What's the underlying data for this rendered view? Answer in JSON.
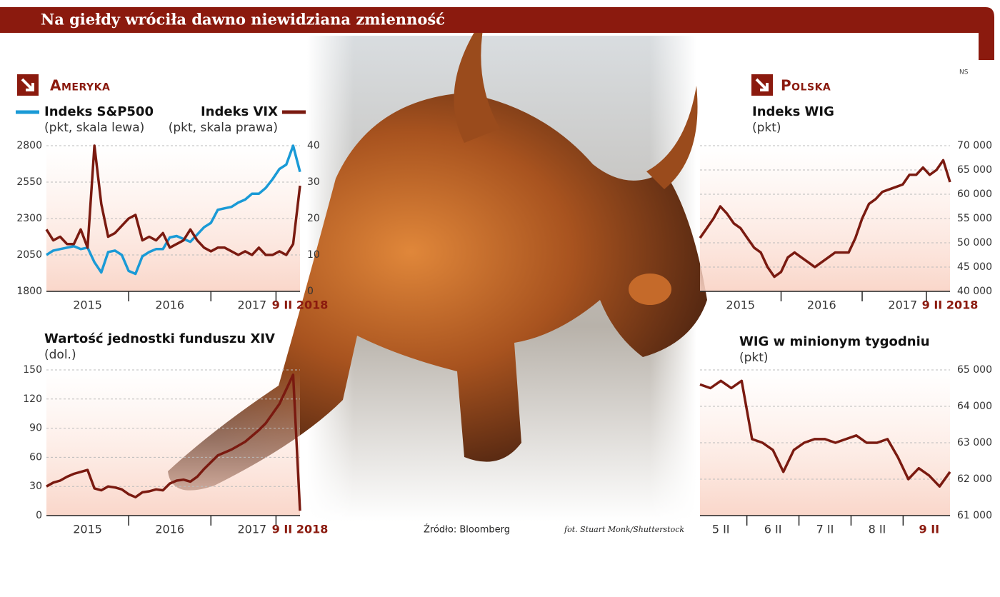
{
  "header": {
    "title": "Na giełdy wróciła dawno niewidziana zmienność",
    "agency": "NS"
  },
  "sections": {
    "america": "Ameryka",
    "poland": "Polska"
  },
  "source": "Źródło: Bloomberg",
  "credit": "fot. Stuart Monk/Shutterstock",
  "chart_data": [
    {
      "type": "line",
      "grid": true,
      "categories": [
        null,
        null,
        null,
        null,
        null,
        null,
        "2015",
        null,
        null,
        null,
        null,
        null,
        null,
        null,
        null,
        null,
        null,
        null,
        "2016",
        null,
        null,
        null,
        null,
        null,
        null,
        null,
        null,
        null,
        null,
        null,
        "2017",
        null,
        null,
        null,
        null,
        null,
        null,
        "9 II 2018"
      ],
      "series": [
        {
          "name": "Indeks S&P500",
          "subtitle": "(pkt, skala lewa)",
          "color": "#1a9ad6",
          "values": [
            2050,
            2080,
            2090,
            2100,
            2110,
            2090,
            2100,
            2000,
            1930,
            2070,
            2080,
            2050,
            1940,
            1920,
            2040,
            2070,
            2090,
            2090,
            2170,
            2180,
            2160,
            2140,
            2190,
            2240,
            2270,
            2360,
            2370,
            2380,
            2410,
            2430,
            2470,
            2470,
            2510,
            2570,
            2640,
            2670,
            2800,
            2620
          ]
        },
        {
          "name": "Indeks VIX",
          "subtitle": "(pkt, skala prawa)",
          "color": "#7a1a10",
          "axis": "y2",
          "values": [
            17,
            14,
            15,
            13,
            13,
            17,
            12,
            40,
            24,
            15,
            16,
            18,
            20,
            21,
            14,
            15,
            14,
            16,
            12,
            13,
            14,
            17,
            14,
            12,
            11,
            12,
            12,
            11,
            10,
            11,
            10,
            12,
            10,
            10,
            11,
            10,
            13,
            29
          ]
        }
      ],
      "ylim": [
        1800,
        2800
      ],
      "yticks": [
        1800,
        2050,
        2300,
        2550,
        2800
      ],
      "y2lim": [
        0,
        40
      ],
      "y2ticks": [
        0,
        10,
        20,
        30,
        40
      ]
    },
    {
      "type": "line",
      "grid": true,
      "title": "Wartość jednostki funduszu XIV",
      "subtitle": "(dol.)",
      "categories": [
        null,
        null,
        null,
        null,
        null,
        null,
        "2015",
        null,
        null,
        null,
        null,
        null,
        null,
        null,
        null,
        null,
        null,
        null,
        "2016",
        null,
        null,
        null,
        null,
        null,
        null,
        null,
        null,
        null,
        null,
        null,
        "2017",
        null,
        null,
        null,
        null,
        null,
        null,
        "9 II 2018"
      ],
      "series": [
        {
          "color": "#7a1a10",
          "values": [
            30,
            34,
            36,
            40,
            43,
            45,
            47,
            28,
            26,
            30,
            29,
            27,
            22,
            19,
            24,
            25,
            27,
            26,
            33,
            36,
            37,
            35,
            40,
            48,
            55,
            62,
            65,
            68,
            72,
            76,
            82,
            88,
            95,
            105,
            115,
            130,
            145,
            5
          ]
        }
      ],
      "ylim": [
        0,
        150
      ],
      "yticks": [
        0,
        30,
        60,
        90,
        120,
        150
      ]
    },
    {
      "type": "line",
      "grid": true,
      "title": "Indeks WIG",
      "subtitle": "(pkt)",
      "categories": [
        null,
        null,
        null,
        null,
        null,
        null,
        "2015",
        null,
        null,
        null,
        null,
        null,
        null,
        null,
        null,
        null,
        null,
        null,
        "2016",
        null,
        null,
        null,
        null,
        null,
        null,
        null,
        null,
        null,
        null,
        null,
        "2017",
        null,
        null,
        null,
        null,
        null,
        null,
        "9 II 2018"
      ],
      "series": [
        {
          "color": "#7a1a10",
          "values": [
            51000,
            53000,
            55000,
            57500,
            56000,
            54000,
            53000,
            51000,
            49000,
            48000,
            45000,
            43000,
            44000,
            47000,
            48000,
            47000,
            46000,
            45000,
            46000,
            47000,
            48000,
            48000,
            48000,
            51000,
            55000,
            58000,
            59000,
            60500,
            61000,
            61500,
            62000,
            64000,
            64000,
            65500,
            64000,
            65000,
            67000,
            62500
          ]
        }
      ],
      "ylim": [
        40000,
        70000
      ],
      "yticks": [
        {
          "value": 40000,
          "label": "40 000"
        },
        {
          "value": 45000,
          "label": "45 000"
        },
        {
          "value": 50000,
          "label": "50 000"
        },
        {
          "value": 55000,
          "label": "55 000"
        },
        {
          "value": 60000,
          "label": "60 000"
        },
        {
          "value": 65000,
          "label": "65 000"
        },
        {
          "value": 70000,
          "label": "70 000"
        }
      ]
    },
    {
      "type": "line",
      "grid": true,
      "title": "WIG w minionym tygodniu",
      "subtitle": "(pkt)",
      "categories": [
        null,
        null,
        "5 II",
        null,
        null,
        null,
        null,
        "6 II",
        null,
        null,
        null,
        null,
        "7 II",
        null,
        null,
        null,
        null,
        "8 II",
        null,
        null,
        null,
        null,
        "9 II",
        null,
        null
      ],
      "series": [
        {
          "color": "#7a1a10",
          "values": [
            64600,
            64500,
            64700,
            64500,
            64700,
            63100,
            63000,
            62800,
            62200,
            62800,
            63000,
            63100,
            63100,
            63000,
            63100,
            63200,
            63000,
            63000,
            63100,
            62600,
            62000,
            62300,
            62100,
            61800,
            62200
          ]
        }
      ],
      "ylim": [
        61000,
        65000
      ],
      "yticks": [
        {
          "value": 61000,
          "label": "61 000"
        },
        {
          "value": 62000,
          "label": "62 000"
        },
        {
          "value": 63000,
          "label": "63 000"
        },
        {
          "value": 64000,
          "label": "64 000"
        },
        {
          "value": 65000,
          "label": "65 000"
        }
      ]
    }
  ]
}
